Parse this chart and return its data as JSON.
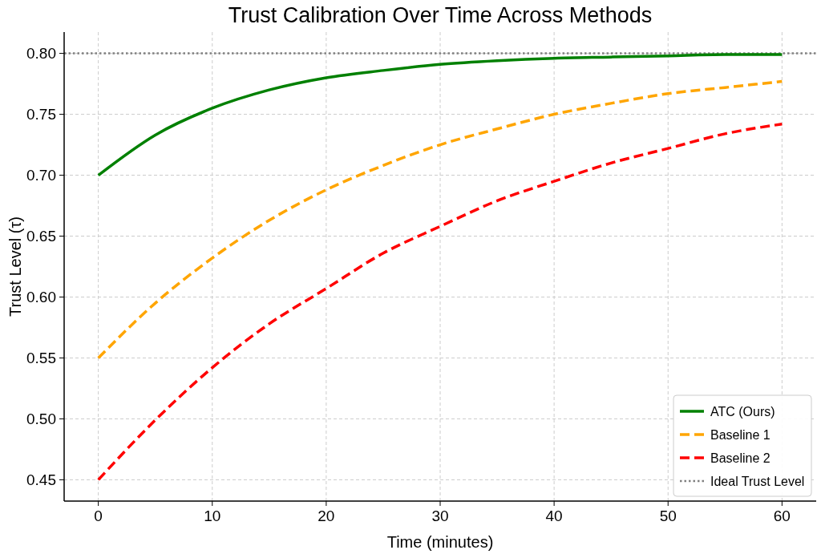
{
  "chart_data": {
    "type": "line",
    "title": "Trust Calibration Over Time Across Methods",
    "xlabel": "Time (minutes)",
    "ylabel": "Trust Level (τ)",
    "x": [
      0,
      5,
      10,
      15,
      20,
      25,
      30,
      35,
      40,
      45,
      50,
      55,
      60
    ],
    "series": [
      {
        "name": "ATC (Ours)",
        "color": "#008000",
        "line_style": "solid",
        "values": [
          0.7,
          0.733,
          0.755,
          0.77,
          0.78,
          0.786,
          0.791,
          0.794,
          0.796,
          0.797,
          0.798,
          0.799,
          0.799
        ]
      },
      {
        "name": "Baseline 1",
        "color": "#ffa500",
        "line_style": "dashed",
        "values": [
          0.55,
          0.595,
          0.632,
          0.663,
          0.688,
          0.708,
          0.725,
          0.738,
          0.75,
          0.759,
          0.767,
          0.772,
          0.777
        ]
      },
      {
        "name": "Baseline 2",
        "color": "#ff0000",
        "line_style": "dashed",
        "values": [
          0.45,
          0.499,
          0.542,
          0.578,
          0.607,
          0.636,
          0.658,
          0.679,
          0.695,
          0.71,
          0.722,
          0.734,
          0.742
        ]
      }
    ],
    "ref_lines": [
      {
        "axis": "y",
        "value": 0.8,
        "label": "Ideal Trust Level",
        "color": "#808080",
        "line_style": "dotted"
      }
    ],
    "xlim": [
      -3,
      63
    ],
    "xticks": [
      0,
      10,
      20,
      30,
      40,
      50,
      60
    ],
    "ylim": [
      0.4325,
      0.8175
    ],
    "yticks": [
      {
        "value": 0.45,
        "label": "0.45"
      },
      {
        "value": 0.5,
        "label": "0.50"
      },
      {
        "value": 0.55,
        "label": "0.55"
      },
      {
        "value": 0.6,
        "label": "0.60"
      },
      {
        "value": 0.65,
        "label": "0.65"
      },
      {
        "value": 0.7,
        "label": "0.70"
      },
      {
        "value": 0.75,
        "label": "0.75"
      },
      {
        "value": 0.8,
        "label": "0.80"
      }
    ],
    "grid": true,
    "legend": "bottom right",
    "marker": "none"
  }
}
